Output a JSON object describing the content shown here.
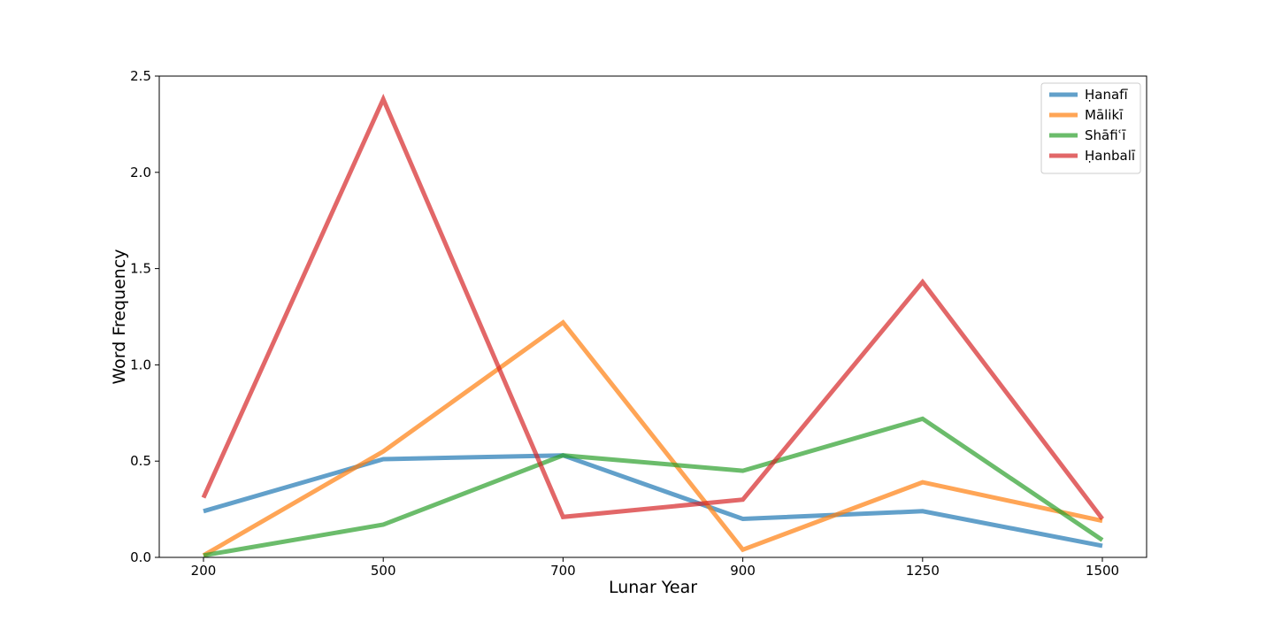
{
  "chart_data": {
    "type": "line",
    "title": "",
    "xlabel": "Lunar Year",
    "ylabel": "Word Frequency",
    "categories": [
      "200",
      "500",
      "700",
      "900",
      "1250",
      "1500"
    ],
    "ylim": [
      0,
      2.5
    ],
    "yticks": [
      "0.0",
      "0.5",
      "1.0",
      "1.5",
      "2.0",
      "2.5"
    ],
    "grid": false,
    "legend_position": "top-right",
    "series": [
      {
        "name": "Ḥanafī",
        "color": "#1f77b4",
        "values": [
          0.24,
          0.51,
          0.53,
          0.2,
          0.24,
          0.06
        ]
      },
      {
        "name": "Mālikī",
        "color": "#ff7f0e",
        "values": [
          0.01,
          0.55,
          1.22,
          0.04,
          0.39,
          0.19
        ]
      },
      {
        "name": "Shāfiʿī",
        "color": "#2ca02c",
        "values": [
          0.01,
          0.17,
          0.53,
          0.45,
          0.72,
          0.09
        ]
      },
      {
        "name": "Ḥanbalī",
        "color": "#d62728",
        "values": [
          0.31,
          2.38,
          0.21,
          0.3,
          1.43,
          0.2
        ]
      }
    ]
  }
}
